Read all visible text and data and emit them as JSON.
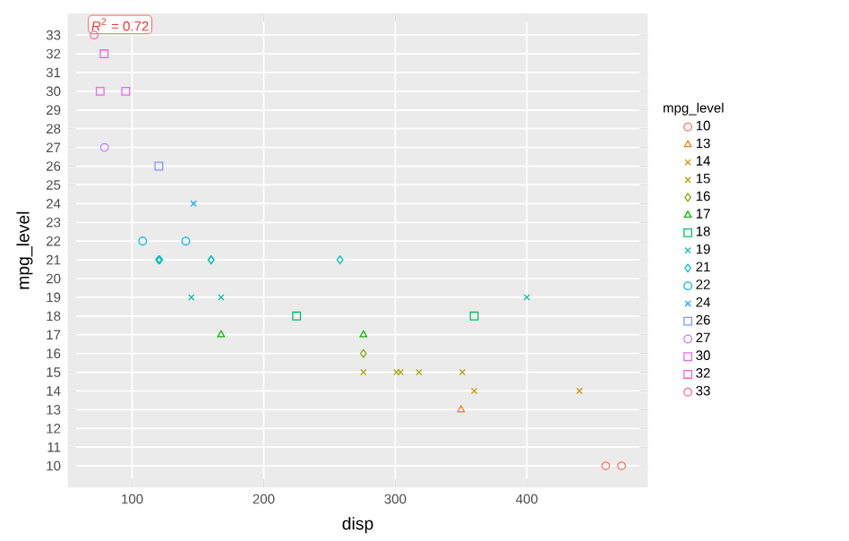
{
  "chart_data": {
    "type": "scatter",
    "xlabel": "disp",
    "ylabel": "mpg_level",
    "legend_title": "mpg_level",
    "legend": "right",
    "grid": true,
    "annotations": [
      "*R*$^{2}$ = 0.72"
    ],
    "xlim": [
      51,
      492
    ],
    "ylim": [
      8.85,
      34.15
    ],
    "xticks": [
      100,
      200,
      300,
      400
    ],
    "yticks": [
      10,
      11,
      12,
      13,
      14,
      15,
      16,
      17,
      18,
      19,
      20,
      21,
      22,
      23,
      24,
      25,
      26,
      27,
      28,
      29,
      30,
      31,
      32,
      33
    ],
    "series": [
      {
        "name": "10",
        "color": "#F8766D",
        "marker": "circle",
        "x": [
          460,
          472
        ],
        "values": [
          10,
          10
        ]
      },
      {
        "name": "13",
        "color": "#E68613",
        "marker": "triangle",
        "x": [
          350
        ],
        "values": [
          13
        ]
      },
      {
        "name": "14",
        "color": "#CD9600",
        "marker": "cross",
        "x": [
          360,
          440
        ],
        "values": [
          14,
          14
        ]
      },
      {
        "name": "15",
        "color": "#ABA300",
        "marker": "cross",
        "x": [
          275.8,
          301,
          304,
          318,
          351
        ],
        "values": [
          15,
          15,
          15,
          15,
          15
        ]
      },
      {
        "name": "16",
        "color": "#7CAE00",
        "marker": "diamond",
        "x": [
          275.8
        ],
        "values": [
          16
        ]
      },
      {
        "name": "17",
        "color": "#0CB702",
        "marker": "triangle",
        "x": [
          167.6,
          275.8
        ],
        "values": [
          17,
          17
        ]
      },
      {
        "name": "18",
        "color": "#00BE67",
        "marker": "square",
        "x": [
          225,
          360
        ],
        "values": [
          18,
          18
        ]
      },
      {
        "name": "19",
        "color": "#00C19A",
        "marker": "cross",
        "x": [
          145,
          167.6,
          400
        ],
        "values": [
          19,
          19,
          19
        ]
      },
      {
        "name": "21",
        "color": "#00BFC4",
        "marker": "diamond",
        "x": [
          120.1,
          121,
          160,
          160,
          258
        ],
        "values": [
          21,
          21,
          21,
          21,
          21
        ]
      },
      {
        "name": "22",
        "color": "#00B8E7",
        "marker": "circle",
        "x": [
          108,
          140.8
        ],
        "values": [
          22,
          22
        ]
      },
      {
        "name": "24",
        "color": "#00A9FF",
        "marker": "cross",
        "x": [
          146.7
        ],
        "values": [
          24
        ]
      },
      {
        "name": "26",
        "color": "#8494FF",
        "marker": "square",
        "x": [
          120.3
        ],
        "values": [
          26
        ]
      },
      {
        "name": "27",
        "color": "#C77CFF",
        "marker": "circle",
        "x": [
          79
        ],
        "values": [
          27
        ]
      },
      {
        "name": "30",
        "color": "#ED68ED",
        "marker": "square",
        "x": [
          75.7,
          95.1
        ],
        "values": [
          30,
          30
        ]
      },
      {
        "name": "32",
        "color": "#FF61CC",
        "marker": "square",
        "x": [
          78.7
        ],
        "values": [
          32
        ]
      },
      {
        "name": "33",
        "color": "#FF68A1",
        "marker": "circle",
        "x": [
          71.1
        ],
        "values": [
          33
        ]
      }
    ]
  }
}
